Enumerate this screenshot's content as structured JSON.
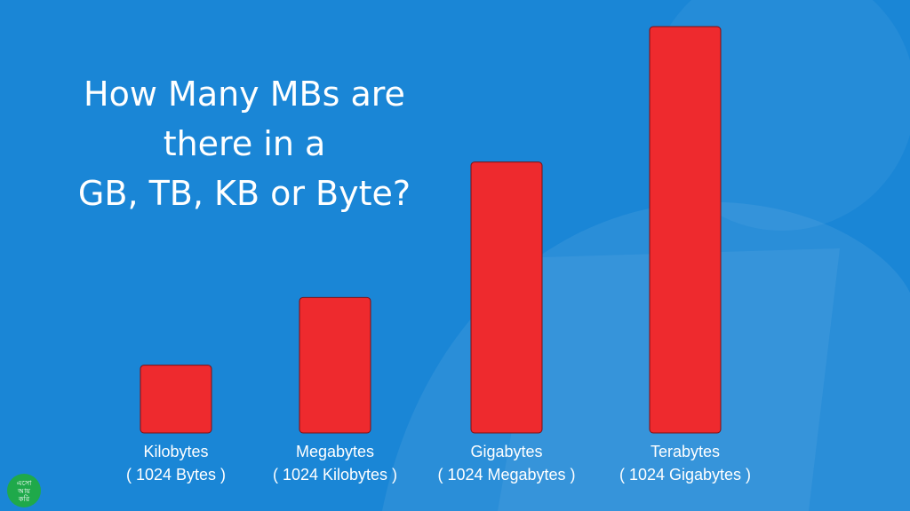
{
  "title_lines": [
    "How Many MBs are",
    "there in a",
    "GB, TB, KB or Byte?"
  ],
  "colors": {
    "background": "#1a86d6",
    "bar_fill": "#ee2a2e",
    "bar_stroke": "#7a1014",
    "text": "#ffffff"
  },
  "chart_data": {
    "type": "bar",
    "title": "How Many MBs are there in a GB, TB, KB or Byte?",
    "categories": [
      "Kilobytes",
      "Megabytes",
      "Gigabytes",
      "Terabytes"
    ],
    "sublabels": [
      "( 1024 Bytes )",
      "( 1024 Kilobytes )",
      "( 1024 Megabytes )",
      "( 1024 Gigabytes )"
    ],
    "values": [
      1,
      2,
      4,
      6
    ],
    "ylim": [
      0,
      6
    ],
    "grid": false,
    "legend": "none"
  },
  "logo": {
    "lines": [
      "এসো",
      "আয়",
      "করি"
    ],
    "color": "#1fa94a"
  }
}
